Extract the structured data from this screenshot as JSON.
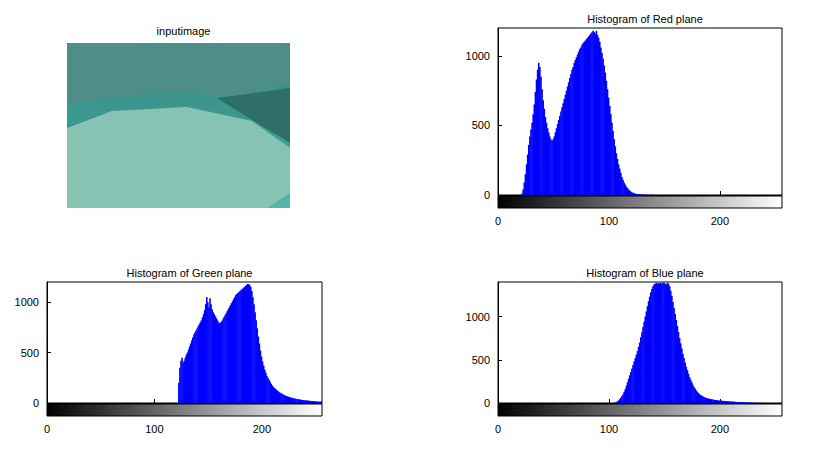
{
  "image": {
    "title": "inputimage"
  },
  "chart_data": [
    {
      "type": "histogram",
      "title": "Histogram of Red plane",
      "color": "#0000ff",
      "grid": false,
      "xlim": [
        0,
        256
      ],
      "xticks": [
        0,
        100,
        200
      ],
      "ylim": [
        0,
        1200
      ],
      "yticks": [
        0,
        500,
        1000
      ],
      "bins": [
        20,
        21,
        22,
        23,
        24,
        25,
        26,
        27,
        28,
        29,
        30,
        31,
        32,
        33,
        34,
        35,
        36,
        37,
        38,
        39,
        40,
        41,
        42,
        43,
        44,
        45,
        46,
        47,
        48,
        49,
        50,
        51,
        52,
        53,
        54,
        55,
        56,
        57,
        58,
        59,
        60,
        61,
        62,
        63,
        64,
        65,
        66,
        67,
        68,
        69,
        70,
        71,
        72,
        73,
        74,
        75,
        76,
        77,
        78,
        79,
        80,
        81,
        82,
        83,
        84,
        85,
        86,
        87,
        88,
        89,
        90,
        91,
        92,
        93,
        94,
        95,
        96,
        97,
        98,
        99,
        100,
        101,
        102,
        103,
        104,
        105,
        106,
        107,
        108,
        109,
        110,
        111,
        112,
        113,
        114,
        115,
        116,
        117,
        118,
        119,
        120,
        121,
        122,
        123,
        124,
        125,
        126,
        127,
        128,
        129,
        130,
        131,
        132,
        133,
        134,
        135,
        136,
        137,
        138,
        139,
        140,
        141
      ],
      "values": [
        0,
        10,
        40,
        90,
        150,
        220,
        290,
        360,
        420,
        470,
        520,
        580,
        650,
        740,
        830,
        900,
        950,
        920,
        850,
        760,
        680,
        620,
        560,
        520,
        480,
        450,
        420,
        400,
        390,
        400,
        420,
        450,
        480,
        510,
        540,
        570,
        600,
        630,
        660,
        690,
        720,
        750,
        780,
        810,
        840,
        870,
        900,
        920,
        950,
        970,
        990,
        1010,
        1030,
        1050,
        1060,
        1080,
        1090,
        1100,
        1110,
        1120,
        1130,
        1140,
        1150,
        1160,
        1170,
        1180,
        1170,
        1160,
        1180,
        1150,
        1130,
        1100,
        1060,
        1020,
        980,
        930,
        880,
        820,
        760,
        700,
        640,
        580,
        520,
        460,
        400,
        350,
        300,
        260,
        220,
        190,
        160,
        130,
        110,
        90,
        75,
        60,
        50,
        40,
        32,
        26,
        20,
        16,
        13,
        10,
        8,
        7,
        6,
        5,
        4,
        4,
        3,
        3,
        2,
        2,
        2,
        1,
        1,
        1,
        1,
        1,
        0
      ]
    },
    {
      "type": "histogram",
      "title": "Histogram of Green plane",
      "color": "#0000ff",
      "grid": false,
      "xlim": [
        0,
        256
      ],
      "xticks": [
        0,
        100,
        200
      ],
      "ylim": [
        0,
        1200
      ],
      "yticks": [
        0,
        500,
        1000
      ],
      "bins": [
        122,
        123,
        124,
        125,
        126,
        127,
        128,
        129,
        130,
        131,
        132,
        133,
        134,
        135,
        136,
        137,
        138,
        139,
        140,
        141,
        142,
        143,
        144,
        145,
        146,
        147,
        148,
        149,
        150,
        151,
        152,
        153,
        154,
        155,
        156,
        157,
        158,
        159,
        160,
        161,
        162,
        163,
        164,
        165,
        166,
        167,
        168,
        169,
        170,
        171,
        172,
        173,
        174,
        175,
        176,
        177,
        178,
        179,
        180,
        181,
        182,
        183,
        184,
        185,
        186,
        187,
        188,
        189,
        190,
        191,
        192,
        193,
        194,
        195,
        196,
        197,
        198,
        199,
        200,
        201,
        202,
        203,
        204,
        205,
        206,
        207,
        208,
        209,
        210,
        211,
        212,
        213,
        214,
        215,
        216,
        217,
        218,
        219,
        220,
        221,
        222,
        223,
        224,
        225,
        226,
        227,
        228,
        229,
        230,
        231,
        232,
        233,
        234,
        235,
        236,
        237,
        238,
        239,
        240,
        241,
        242,
        243,
        244,
        245,
        246,
        247,
        248,
        249,
        250,
        251,
        252,
        253,
        254,
        255,
        256
      ],
      "values": [
        200,
        350,
        420,
        450,
        400,
        420,
        450,
        480,
        500,
        530,
        560,
        590,
        620,
        650,
        680,
        700,
        720,
        740,
        760,
        780,
        800,
        820,
        850,
        880,
        920,
        980,
        1050,
        1000,
        950,
        1040,
        980,
        930,
        900,
        880,
        860,
        840,
        820,
        800,
        790,
        800,
        810,
        830,
        850,
        870,
        890,
        910,
        930,
        950,
        970,
        990,
        1010,
        1030,
        1050,
        1070,
        1080,
        1090,
        1100,
        1110,
        1120,
        1130,
        1140,
        1150,
        1160,
        1170,
        1180,
        1180,
        1170,
        1150,
        1110,
        1050,
        980,
        900,
        820,
        740,
        660,
        590,
        520,
        460,
        410,
        370,
        330,
        300,
        270,
        250,
        230,
        210,
        190,
        175,
        160,
        150,
        140,
        130,
        120,
        112,
        105,
        98,
        92,
        86,
        80,
        75,
        70,
        66,
        62,
        58,
        55,
        52,
        49,
        46,
        44,
        42,
        40,
        38,
        36,
        34,
        32,
        30,
        28,
        27,
        26,
        25,
        24,
        23,
        22,
        21,
        20,
        19,
        18,
        17,
        16,
        15,
        14,
        13,
        12,
        20
      ]
    },
    {
      "type": "histogram",
      "title": "Histogram of Blue plane",
      "color": "#0000ff",
      "grid": false,
      "xlim": [
        0,
        256
      ],
      "xticks": [
        0,
        100,
        200
      ],
      "ylim": [
        0,
        1400
      ],
      "yticks": [
        0,
        500,
        1000
      ],
      "bins": [
        105,
        106,
        107,
        108,
        109,
        110,
        111,
        112,
        113,
        114,
        115,
        116,
        117,
        118,
        119,
        120,
        121,
        122,
        123,
        124,
        125,
        126,
        127,
        128,
        129,
        130,
        131,
        132,
        133,
        134,
        135,
        136,
        137,
        138,
        139,
        140,
        141,
        142,
        143,
        144,
        145,
        146,
        147,
        148,
        149,
        150,
        151,
        152,
        153,
        154,
        155,
        156,
        157,
        158,
        159,
        160,
        161,
        162,
        163,
        164,
        165,
        166,
        167,
        168,
        169,
        170,
        171,
        172,
        173,
        174,
        175,
        176,
        177,
        178,
        179,
        180,
        181,
        182,
        183,
        184,
        185,
        186,
        187,
        188,
        189,
        190,
        191,
        192,
        193,
        194,
        195,
        196,
        197,
        198,
        199,
        200,
        201,
        202,
        203,
        204,
        205,
        206,
        207,
        208,
        209,
        210,
        211,
        212,
        213,
        214,
        215,
        216,
        217,
        218,
        219,
        220,
        221,
        222,
        223,
        224,
        225,
        226,
        227,
        228,
        229,
        230,
        231,
        232,
        233,
        234,
        235,
        236,
        237,
        238,
        239,
        240
      ],
      "values": [
        5,
        10,
        20,
        30,
        45,
        60,
        80,
        100,
        130,
        160,
        200,
        240,
        280,
        320,
        360,
        400,
        440,
        480,
        520,
        560,
        600,
        650,
        700,
        760,
        820,
        880,
        940,
        1000,
        1060,
        1120,
        1180,
        1230,
        1280,
        1320,
        1350,
        1370,
        1380,
        1390,
        1380,
        1390,
        1385,
        1390,
        1380,
        1390,
        1390,
        1380,
        1370,
        1390,
        1380,
        1350,
        1300,
        1240,
        1170,
        1100,
        1030,
        960,
        890,
        820,
        750,
        690,
        630,
        570,
        520,
        470,
        420,
        380,
        340,
        300,
        270,
        240,
        210,
        185,
        165,
        145,
        130,
        115,
        102,
        92,
        84,
        77,
        70,
        64,
        59,
        55,
        51,
        48,
        45,
        42,
        40,
        38,
        36,
        34,
        32,
        30,
        28,
        27,
        26,
        25,
        24,
        23,
        22,
        21,
        20,
        19,
        18,
        17,
        16,
        15,
        14,
        13,
        12,
        11,
        10,
        10,
        9,
        9,
        8,
        8,
        7,
        7,
        6,
        6,
        5,
        5,
        4,
        4,
        3,
        3,
        2,
        2,
        2,
        1,
        1,
        1,
        1
      ]
    }
  ]
}
